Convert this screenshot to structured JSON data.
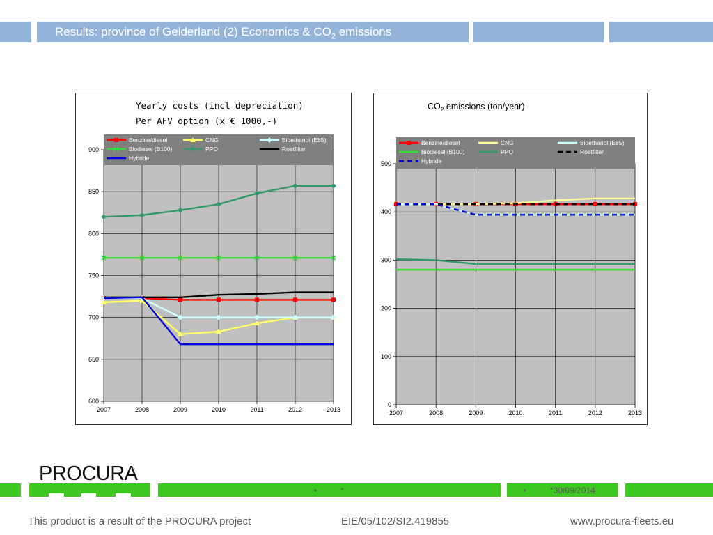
{
  "header": {
    "title_main": "Results: province of Gelderland (2) Economics  & CO",
    "title_sub": "2",
    "title_end": " emissions"
  },
  "colors": {
    "header_blue": "#94b3d9",
    "green": "#3cc820",
    "plot_bg": "#c0c0c0"
  },
  "chart_data": [
    {
      "type": "line",
      "title_line1": "Yearly costs (incl depreciation)",
      "title_line2": "Per AFV option (x € 1000,-)",
      "x": [
        "2007",
        "2008",
        "2009",
        "2010",
        "2011",
        "2012",
        "2013"
      ],
      "ylim": [
        600,
        900
      ],
      "yticks": [
        600,
        650,
        700,
        750,
        800,
        850,
        900
      ],
      "grid": true,
      "legend": "top",
      "series": [
        {
          "name": "Benzine/diesel",
          "color": "#ff0000",
          "marker": "square",
          "values": [
            723,
            723,
            721,
            721,
            721,
            721,
            721
          ]
        },
        {
          "name": "CNG",
          "color": "#ffff66",
          "marker": "triangle",
          "values": [
            718,
            720,
            680,
            683,
            693,
            700,
            700
          ]
        },
        {
          "name": "Bioethanol (E85)",
          "color": "#ccffff",
          "marker": "diamond",
          "values": [
            723,
            723,
            700,
            700,
            700,
            700,
            700
          ]
        },
        {
          "name": "Biodiesel (B100)",
          "color": "#33dd33",
          "marker": "x",
          "values": [
            771,
            771,
            771,
            771,
            771,
            771,
            771
          ]
        },
        {
          "name": "PPO",
          "color": "#339966",
          "marker": "diamond",
          "values": [
            820,
            822,
            828,
            835,
            848,
            857,
            857
          ]
        },
        {
          "name": "Roetfilter",
          "color": "#000000",
          "marker": "none",
          "values": [
            724,
            724,
            724,
            727,
            728,
            730,
            730
          ]
        },
        {
          "name": "Hybride",
          "color": "#0000dd",
          "marker": "none",
          "values": [
            723,
            724,
            668,
            668,
            668,
            668,
            668
          ]
        }
      ]
    },
    {
      "type": "line",
      "title_main": "CO",
      "title_sub": "2",
      "title_end": " emissions (ton/year)",
      "x": [
        "2007",
        "2008",
        "2009",
        "2010",
        "2011",
        "2012",
        "2013"
      ],
      "ylim": [
        0,
        500
      ],
      "yticks": [
        0,
        100,
        200,
        300,
        400,
        500
      ],
      "grid": true,
      "legend": "top",
      "series": [
        {
          "name": "Benzine/diesel",
          "color": "#ff0000",
          "marker": "square",
          "dash": "none",
          "values": [
            416,
            416,
            416,
            416,
            416,
            416,
            416
          ]
        },
        {
          "name": "CNG",
          "color": "#ffff99",
          "marker": "none",
          "dash": "none",
          "values": [
            416,
            416,
            416,
            418,
            424,
            428,
            428
          ]
        },
        {
          "name": "Bioethanol (E85)",
          "color": "#ccffff",
          "marker": "none",
          "dash": "none",
          "values": [
            416,
            416,
            394,
            394,
            394,
            394,
            394
          ]
        },
        {
          "name": "Biodiesel (B100)",
          "color": "#33dd33",
          "marker": "none",
          "dash": "none",
          "values": [
            280,
            280,
            280,
            280,
            280,
            280,
            280
          ]
        },
        {
          "name": "PPO",
          "color": "#339966",
          "marker": "none",
          "dash": "none",
          "values": [
            302,
            300,
            292,
            292,
            292,
            292,
            292
          ]
        },
        {
          "name": "Roetfilter",
          "color": "#000000",
          "marker": "none",
          "dash": "dash",
          "values": [
            416,
            416,
            416,
            416,
            416,
            416,
            416
          ]
        },
        {
          "name": "Hybride",
          "color": "#0000dd",
          "marker": "none",
          "dash": "dash",
          "values": [
            416,
            416,
            394,
            394,
            394,
            394,
            394
          ]
        }
      ]
    }
  ],
  "footer": {
    "brand": "PROCURA",
    "bullet": "•",
    "star": "*",
    "date": "*30/09/2014",
    "left": "This product is a result of the PROCURA project",
    "middle": "EIE/05/102/SI2.419855",
    "right": "www.procura-fleets.eu"
  }
}
